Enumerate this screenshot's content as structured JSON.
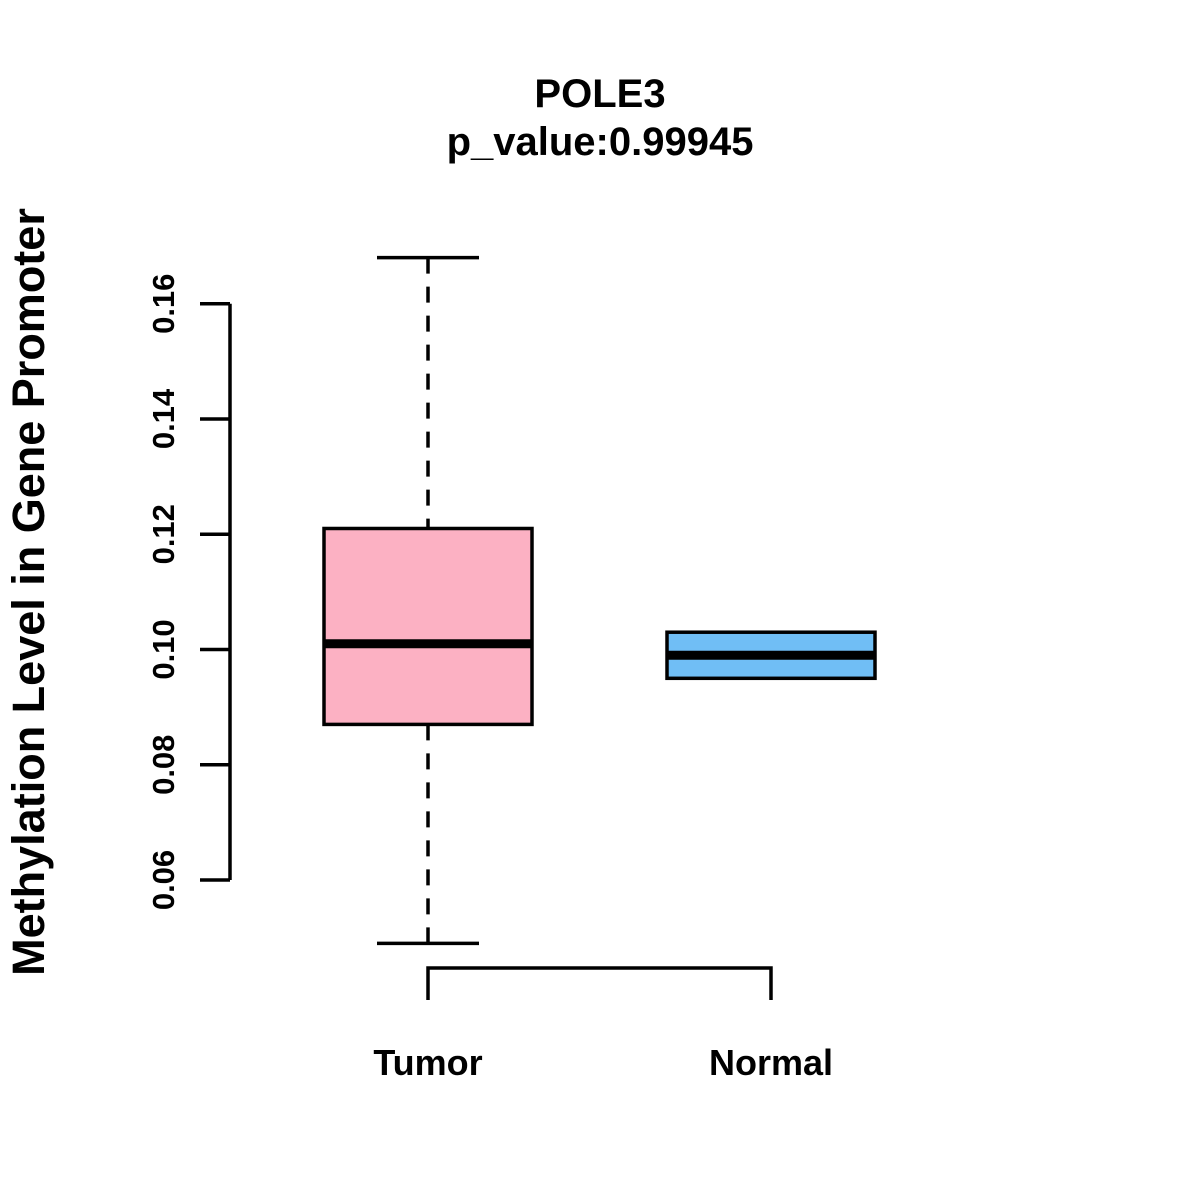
{
  "page": {
    "background_color": "#FFFFFF",
    "foreground_color": "#000000"
  },
  "chart_data": {
    "type": "boxplot",
    "title": "POLE3",
    "subtitle": "p_value:0.99945",
    "ylabel": "Methylation Level in Gene Promoter",
    "xlabel": "",
    "grid": false,
    "legend": false,
    "y_axis": {
      "tick_values": [
        0.06,
        0.08,
        0.1,
        0.12,
        0.14,
        0.16
      ],
      "tick_labels": [
        "0.06",
        "0.08",
        "0.10",
        "0.12",
        "0.14",
        "0.16"
      ],
      "data_range": [
        0.049,
        0.168
      ]
    },
    "categories": [
      "Tumor",
      "Normal"
    ],
    "groups": [
      {
        "label": "Tumor",
        "color": "#FCB1C3",
        "stats": {
          "whisker_low": 0.049,
          "q1": 0.087,
          "median": 0.101,
          "q3": 0.121,
          "whisker_high": 0.168
        }
      },
      {
        "label": "Normal",
        "color": "#70BEF5",
        "stats": {
          "whisker_low": 0.095,
          "q1": 0.095,
          "median": 0.099,
          "q3": 0.103,
          "whisker_high": 0.103
        }
      }
    ]
  }
}
